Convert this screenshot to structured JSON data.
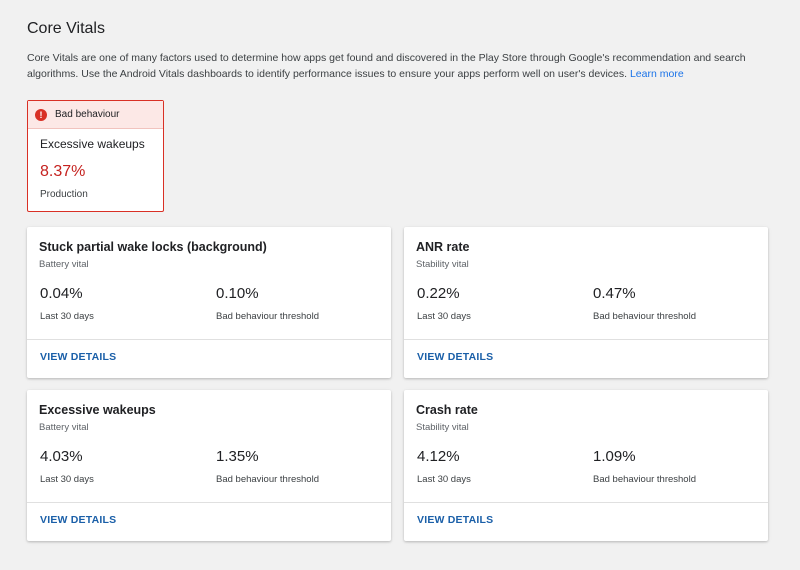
{
  "page": {
    "title": "Core Vitals",
    "description": "Core Vitals are one of many factors used to determine how apps get found and discovered in the Play Store through Google's recommendation and search algorithms. Use the Android Vitals dashboards to identify performance issues to ensure your apps perform well on user's devices.",
    "learn_more": "Learn more"
  },
  "alert": {
    "label": "Bad behaviour",
    "icon": "!",
    "metric": "Excessive wakeups",
    "value": "8.37%",
    "environment": "Production",
    "color": "#d93025"
  },
  "cards": [
    {
      "title": "Stuck partial wake locks (background)",
      "subtitle": "Battery vital",
      "value": "0.04%",
      "value_label": "Last 30 days",
      "threshold": "0.10%",
      "threshold_label": "Bad behaviour threshold",
      "link": "VIEW DETAILS"
    },
    {
      "title": "ANR rate",
      "subtitle": "Stability vital",
      "value": "0.22%",
      "value_label": "Last 30 days",
      "threshold": "0.47%",
      "threshold_label": "Bad behaviour threshold",
      "link": "VIEW DETAILS"
    },
    {
      "title": "Excessive wakeups",
      "subtitle": "Battery vital",
      "value": "4.03%",
      "value_label": "Last 30 days",
      "threshold": "1.35%",
      "threshold_label": "Bad behaviour threshold",
      "link": "VIEW DETAILS"
    },
    {
      "title": "Crash rate",
      "subtitle": "Stability vital",
      "value": "4.12%",
      "value_label": "Last 30 days",
      "threshold": "1.09%",
      "threshold_label": "Bad behaviour threshold",
      "link": "VIEW DETAILS"
    }
  ]
}
